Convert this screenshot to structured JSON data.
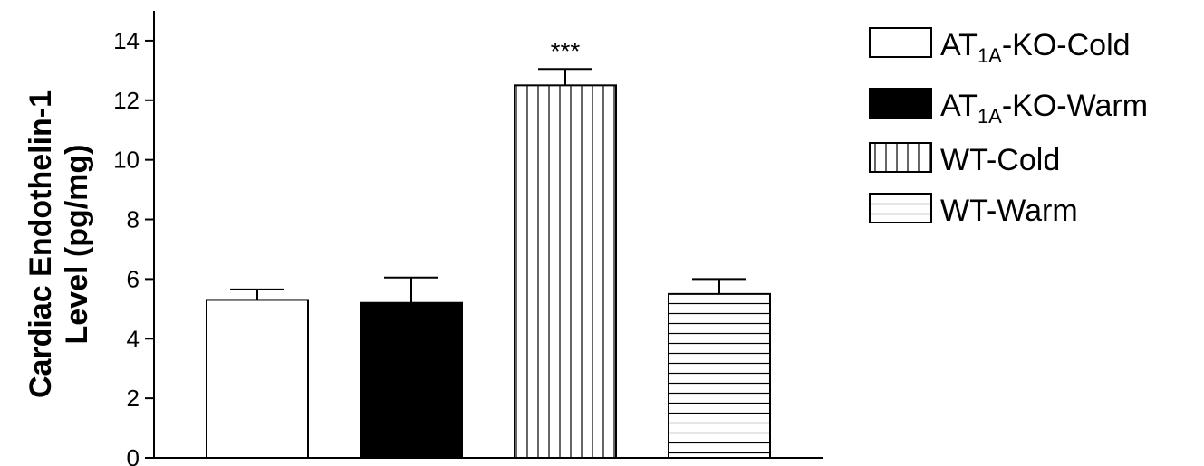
{
  "chart_data": {
    "type": "bar",
    "ylabel_line1": "Cardiac Endothelin-1",
    "ylabel_line2": "Level (pg/mg)",
    "xlabel": "",
    "ylim": [
      0,
      15
    ],
    "yticks": [
      "0",
      "2",
      "4",
      "6",
      "8",
      "10",
      "12",
      "14"
    ],
    "ytick_values": [
      0,
      2,
      4,
      6,
      8,
      10,
      12,
      14
    ],
    "grid": false,
    "legend_placement": "right",
    "series": [
      {
        "legend_main": "AT",
        "legend_sub": "1A",
        "legend_rest": "-KO-Cold",
        "value": 5.3,
        "error": 0.35,
        "fill": "white",
        "annotation": ""
      },
      {
        "legend_main": "AT",
        "legend_sub": "1A",
        "legend_rest": "-KO-Warm",
        "value": 5.2,
        "error": 0.85,
        "fill": "black",
        "annotation": ""
      },
      {
        "legend_main": "WT-Cold",
        "legend_sub": "",
        "legend_rest": "",
        "value": 12.5,
        "error": 0.55,
        "fill": "vertical-hatch",
        "annotation": "***"
      },
      {
        "legend_main": "WT-Warm",
        "legend_sub": "",
        "legend_rest": "",
        "value": 5.5,
        "error": 0.5,
        "fill": "horizontal-hatch",
        "annotation": ""
      }
    ]
  },
  "colors": {
    "ink": "#000000",
    "background": "#ffffff"
  }
}
